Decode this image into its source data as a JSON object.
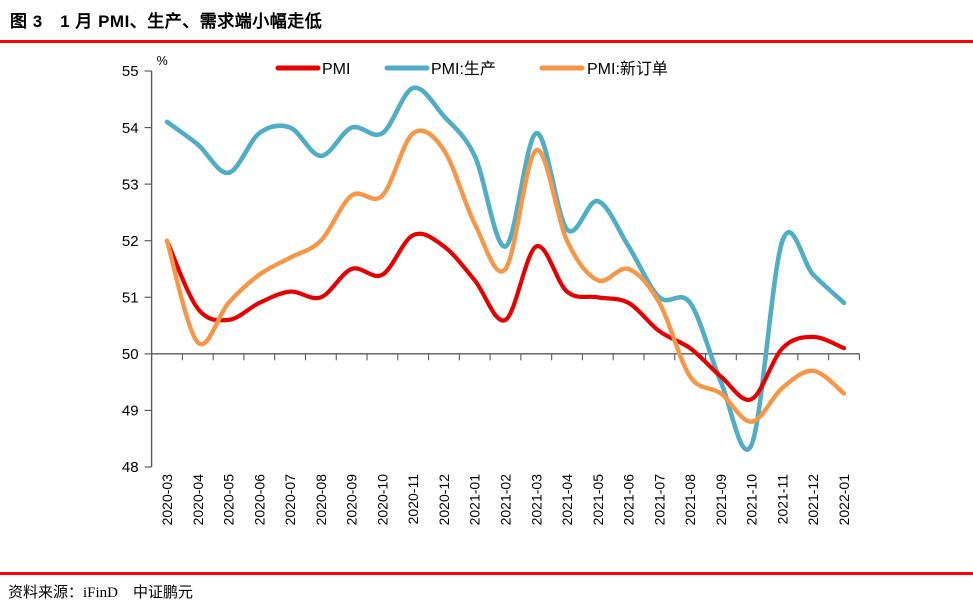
{
  "header": {
    "title": "图 3　1 月 PMI、生产、需求端小幅走低"
  },
  "footer": {
    "source": "资料来源：iFinD　中证鹏元"
  },
  "colors": {
    "rule_red": "#fe0000",
    "axis_gray": "#595959",
    "text_black": "#000000",
    "series_pmi": "#e60000",
    "series_production": "#4fadc6",
    "series_new_orders": "#f79646"
  },
  "chart_data": {
    "type": "line",
    "smooth": true,
    "title": "",
    "xlabel": "",
    "ylabel": "%",
    "ylim": [
      48,
      55
    ],
    "ytick_step": 1,
    "axis_cross_value": 50,
    "legend_position": "top",
    "grid": false,
    "categories": [
      "2020-03",
      "2020-04",
      "2020-05",
      "2020-06",
      "2020-07",
      "2020-08",
      "2020-09",
      "2020-10",
      "2020-11",
      "2020-12",
      "2021-01",
      "2021-02",
      "2021-03",
      "2021-04",
      "2021-05",
      "2021-06",
      "2021-07",
      "2021-08",
      "2021-09",
      "2021-10",
      "2021-11",
      "2021-12",
      "2022-01"
    ],
    "series": [
      {
        "name": "PMI",
        "color": "#e60000",
        "values": [
          52.0,
          50.8,
          50.6,
          50.9,
          51.1,
          51.0,
          51.5,
          51.4,
          52.1,
          51.9,
          51.3,
          50.6,
          51.9,
          51.1,
          51.0,
          50.9,
          50.4,
          50.1,
          49.6,
          49.2,
          50.1,
          50.3,
          50.1
        ]
      },
      {
        "name": "PMI:生产",
        "color": "#4fadc6",
        "values": [
          54.1,
          53.7,
          53.2,
          53.9,
          54.0,
          53.5,
          54.0,
          53.9,
          54.7,
          54.2,
          53.5,
          51.9,
          53.9,
          52.2,
          52.7,
          51.9,
          51.0,
          50.9,
          49.5,
          48.4,
          52.0,
          51.4,
          50.9
        ]
      },
      {
        "name": "PMI:新订单",
        "color": "#f79646",
        "values": [
          52.0,
          50.2,
          50.9,
          51.4,
          51.7,
          52.0,
          52.8,
          52.8,
          53.9,
          53.6,
          52.3,
          51.5,
          53.6,
          52.0,
          51.3,
          51.5,
          50.9,
          49.6,
          49.3,
          48.8,
          49.4,
          49.7,
          49.3
        ]
      }
    ]
  }
}
